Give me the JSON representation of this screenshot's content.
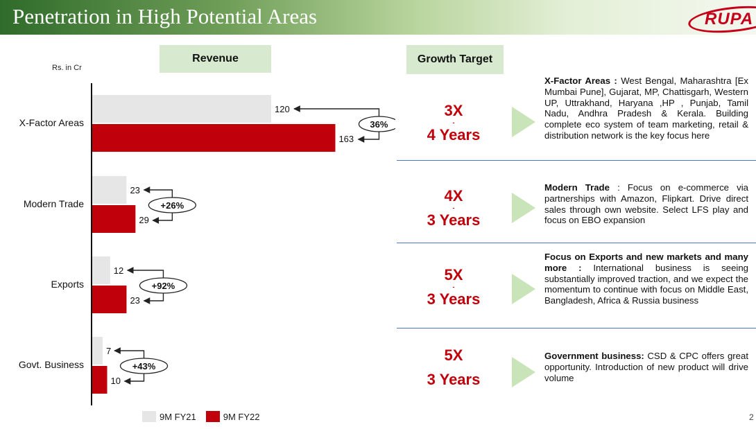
{
  "header": {
    "title": "Penetration in High Potential Areas",
    "logo_text": "RUPA"
  },
  "revenue_label": "Revenue",
  "growth_target_label": "Growth Target",
  "units": "Rs. in Cr",
  "chart_data": {
    "type": "bar",
    "orientation": "horizontal",
    "categories": [
      "X-Factor Areas",
      "Modern Trade",
      "Exports",
      "Govt. Business"
    ],
    "series": [
      {
        "name": "9M FY21",
        "values": [
          120,
          23,
          12,
          7
        ],
        "color": "#e6e6e6"
      },
      {
        "name": "9M FY22",
        "values": [
          163,
          29,
          23,
          10
        ],
        "color": "#c0000a"
      }
    ],
    "growth_labels": [
      "36%",
      "+26%",
      "+92%",
      "+43%"
    ],
    "units": "Rs. in Cr",
    "legend_position": "bottom",
    "grid": false
  },
  "targets": [
    {
      "multiple": "3X",
      "dash": "-",
      "years": "4 Years",
      "desc_bold": "X-Factor Areas :",
      "desc_rest": " West Bengal, Maharashtra [Ex Mumbai Pune], Gujarat, MP, Chattisgarh, Western UP, Uttrakhand, Haryana ,HP , Punjab, Tamil Nadu, Andhra Pradesh & Kerala. Building complete eco system of team marketing, retail & distribution network is the key focus here"
    },
    {
      "multiple": "4X",
      "dash": "-",
      "years": "3 Years",
      "desc_bold": "Modern Trade",
      "desc_rest": " : Focus on e-commerce via partnerships with Amazon, Flipkart. Drive direct sales through own website. Select LFS play and focus on EBO expansion"
    },
    {
      "multiple": "5X",
      "dash": "-",
      "years": "3 Years",
      "desc_bold": "Focus on Exports and new markets and many more :",
      "desc_rest": " International business is seeing substantially improved traction, and we expect the momentum to continue with focus on Middle East, Bangladesh, Africa & Russia business"
    },
    {
      "multiple": "5X",
      "dash": "",
      "years": "3 Years",
      "desc_bold": "Government business:",
      "desc_rest": " CSD & CPC offers great opportunity. Introduction of new product will drive volume"
    }
  ],
  "page_number": "2"
}
